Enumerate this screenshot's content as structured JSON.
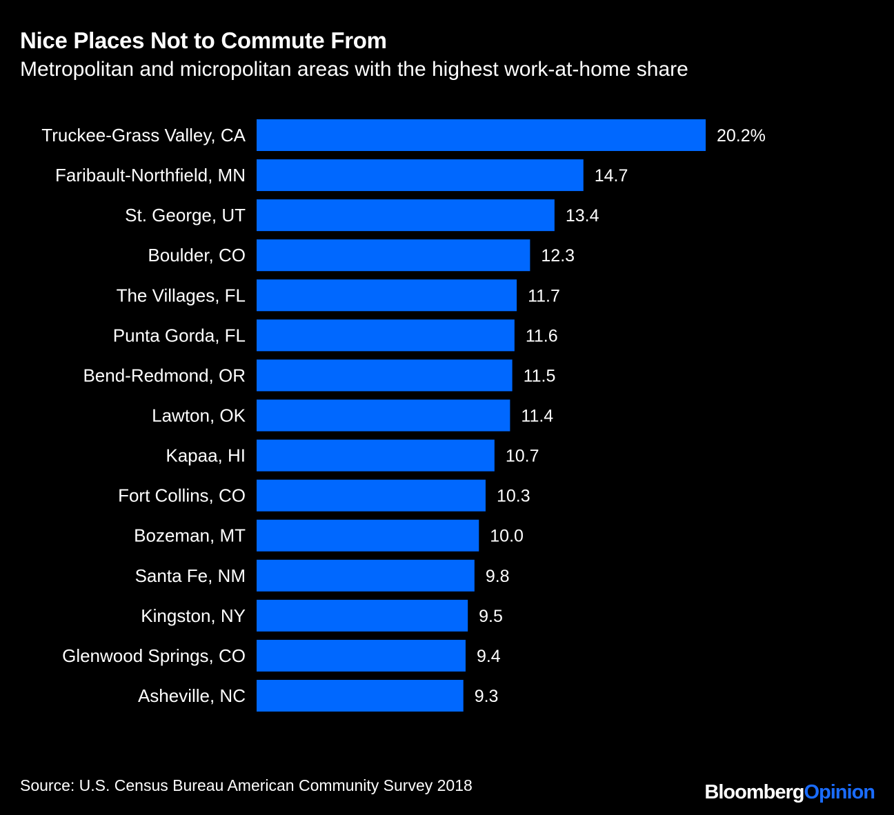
{
  "header": {
    "title": "Nice Places Not to Commute From",
    "subtitle": "Metropolitan and micropolitan areas with the highest work-at-home share"
  },
  "footer": {
    "source": "Source: U.S. Census Bureau American Community Survey 2018",
    "brand_part1": "Bloomberg",
    "brand_part2": "Opinion"
  },
  "colors": {
    "background": "#000000",
    "bar": "#0068ff",
    "text": "#ffffff",
    "brand_accent": "#1a6cff"
  },
  "chart_data": {
    "type": "bar",
    "orientation": "horizontal",
    "title": "Nice Places Not to Commute From",
    "subtitle": "Metropolitan and micropolitan areas with the highest work-at-home share",
    "categories": [
      "Truckee-Grass Valley, CA",
      "Faribault-Northfield, MN",
      "St. George, UT",
      "Boulder, CO",
      "The Villages, FL",
      "Punta Gorda, FL",
      "Bend-Redmond, OR",
      "Lawton, OK",
      "Kapaa, HI",
      "Fort Collins, CO",
      "Bozeman, MT",
      "Santa Fe, NM",
      "Kingston, NY",
      "Glenwood Springs, CO",
      "Asheville, NC"
    ],
    "values": [
      20.2,
      14.7,
      13.4,
      12.3,
      11.7,
      11.6,
      11.5,
      11.4,
      10.7,
      10.3,
      10.0,
      9.8,
      9.5,
      9.4,
      9.3
    ],
    "value_labels": [
      "20.2%",
      "14.7",
      "13.4",
      "12.3",
      "11.7",
      "11.6",
      "11.5",
      "11.4",
      "10.7",
      "10.3",
      "10.0",
      "9.8",
      "9.5",
      "9.4",
      "9.3"
    ],
    "xlim": [
      0,
      20.2
    ],
    "grid": false,
    "legend": "none"
  }
}
